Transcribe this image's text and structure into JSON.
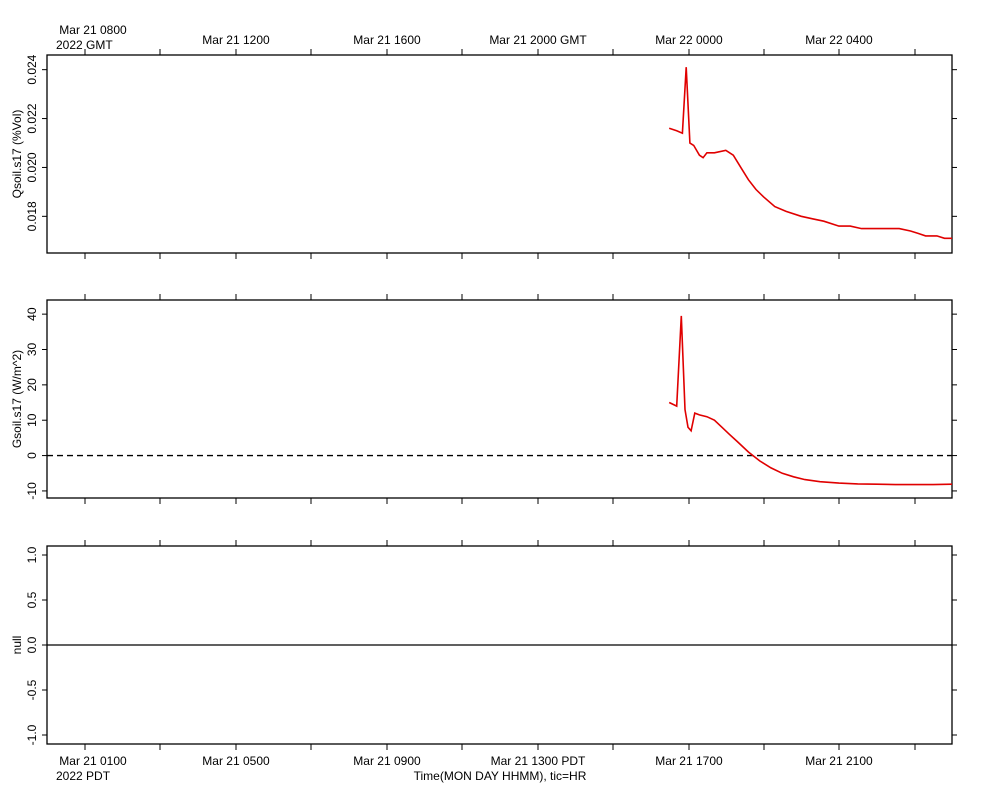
{
  "top_axis": {
    "labels": [
      "Mar 21 0800",
      "Mar 21 1200",
      "Mar 21 1600",
      "Mar 21 2000 GMT",
      "Mar 22 0000",
      "Mar 22 0400"
    ],
    "year_label": "2022 GMT"
  },
  "bottom_axis": {
    "labels": [
      "Mar 21 0100",
      "Mar 21 0500",
      "Mar 21 0900",
      "Mar 21 1300 PDT",
      "Mar 21 1700",
      "Mar 21 2100"
    ],
    "year_label": "2022 PDT",
    "title": "Time(MON DAY HHMM), tic=HR"
  },
  "chart_data": [
    {
      "type": "line",
      "ylabel": "Qsoil.s17 (%Vol)",
      "ylim": [
        0.0165,
        0.0246
      ],
      "yticks": [
        0.018,
        0.02,
        0.022,
        0.024
      ],
      "ytick_labels": [
        "0.018",
        "0.020",
        "0.022",
        "0.024"
      ],
      "x_hours_pdt_range": [
        0,
        24
      ],
      "series_color": "#e00000",
      "x": [
        16.5,
        16.7,
        16.85,
        16.95,
        17.05,
        17.15,
        17.3,
        17.4,
        17.5,
        17.7,
        18.0,
        18.2,
        18.4,
        18.6,
        18.8,
        19.0,
        19.3,
        19.6,
        20.0,
        20.3,
        20.6,
        21.0,
        21.3,
        21.6,
        22.0,
        22.3,
        22.6,
        22.9,
        23.1,
        23.3,
        23.6,
        23.8,
        24.0
      ],
      "values": [
        0.0216,
        0.0215,
        0.0214,
        0.0241,
        0.021,
        0.0209,
        0.0205,
        0.0204,
        0.0206,
        0.0206,
        0.0207,
        0.0205,
        0.02,
        0.0195,
        0.0191,
        0.0188,
        0.0184,
        0.0182,
        0.018,
        0.0179,
        0.0178,
        0.0176,
        0.0176,
        0.0175,
        0.0175,
        0.0175,
        0.0175,
        0.0174,
        0.0173,
        0.0172,
        0.0172,
        0.0171,
        0.0171
      ]
    },
    {
      "type": "line",
      "ylabel": "Gsoil.s17 (W/m^2)",
      "ylim": [
        -12,
        44
      ],
      "yticks": [
        -10,
        0,
        10,
        20,
        30,
        40
      ],
      "ytick_labels": [
        "-10",
        "0",
        "10",
        "20",
        "30",
        "40"
      ],
      "reference_line": 0,
      "reference_style": "dashed",
      "x_hours_pdt_range": [
        0,
        24
      ],
      "series_color": "#e00000",
      "x": [
        16.5,
        16.7,
        16.82,
        16.92,
        17.0,
        17.08,
        17.18,
        17.3,
        17.5,
        17.7,
        17.9,
        18.1,
        18.3,
        18.6,
        18.9,
        19.2,
        19.5,
        19.8,
        20.1,
        20.5,
        21.0,
        21.5,
        22.0,
        22.5,
        23.0,
        23.5,
        24.0
      ],
      "values": [
        15,
        14,
        39.5,
        13,
        8,
        7,
        12,
        11.5,
        11,
        10,
        8,
        6,
        4,
        1,
        -1.5,
        -3.5,
        -5,
        -6,
        -6.8,
        -7.4,
        -7.8,
        -8.0,
        -8.1,
        -8.2,
        -8.2,
        -8.2,
        -8.1
      ]
    },
    {
      "type": "line",
      "ylabel": "null",
      "ylim": [
        -1.1,
        1.1
      ],
      "yticks": [
        -1.0,
        -0.5,
        0.0,
        0.5,
        1.0
      ],
      "ytick_labels": [
        "-1.0",
        "-0.5",
        "0.0",
        "0.5",
        "1.0"
      ],
      "reference_line": 0,
      "reference_style": "solid",
      "x_hours_pdt_range": [
        0,
        24
      ],
      "x": [],
      "values": []
    }
  ]
}
